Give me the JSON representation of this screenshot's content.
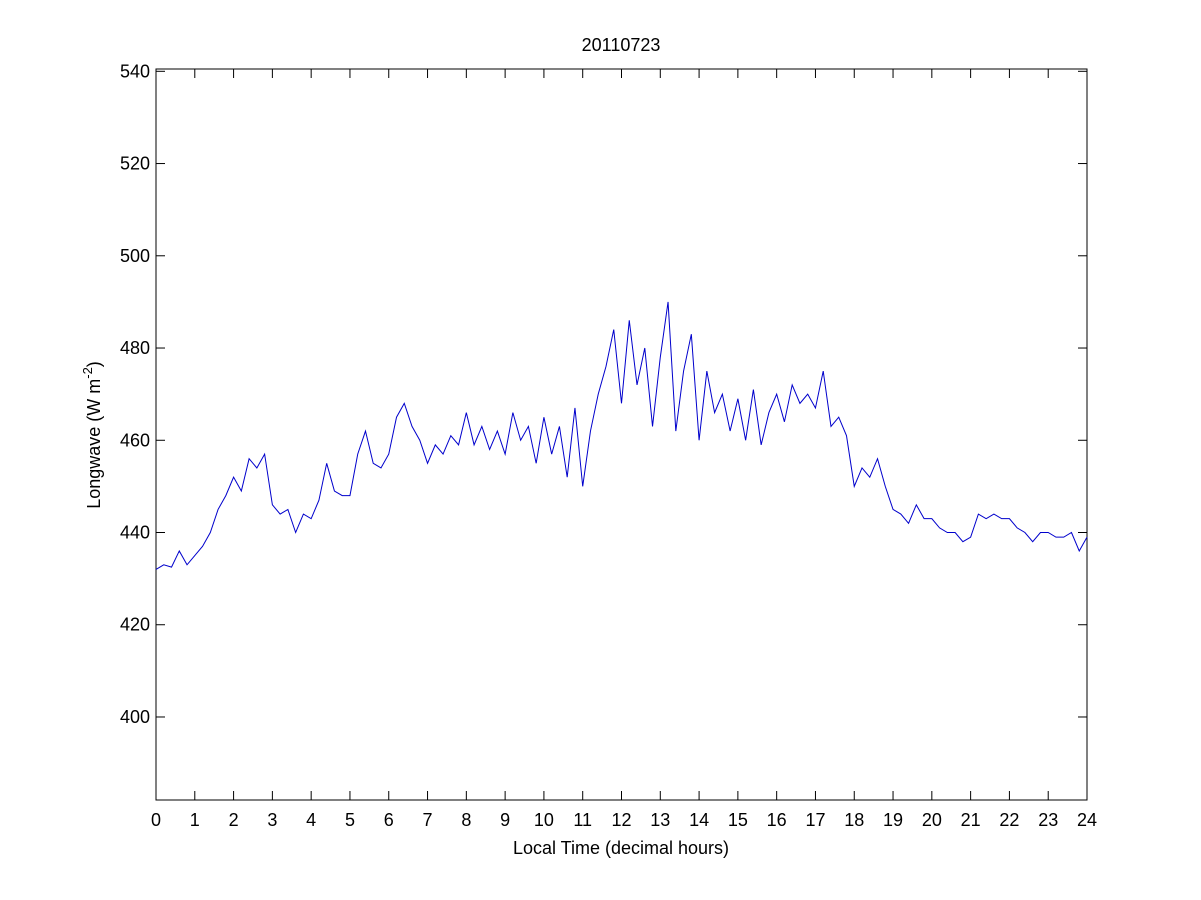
{
  "chart_data": {
    "type": "line",
    "title": "20110723",
    "xlabel": "Local Time (decimal hours)",
    "ylabel": {
      "text": "Longwave (W m",
      "sup": "-2",
      "end": ")"
    },
    "color": "#0000cc",
    "x": [
      0,
      0.2,
      0.4,
      0.6,
      0.8,
      1,
      1.2,
      1.4,
      1.6,
      1.8,
      2,
      2.2,
      2.4,
      2.6,
      2.8,
      3,
      3.2,
      3.4,
      3.6,
      3.8,
      4,
      4.2,
      4.4,
      4.6,
      4.8,
      5,
      5.2,
      5.4,
      5.6,
      5.8,
      6,
      6.2,
      6.4,
      6.6,
      6.8,
      7,
      7.2,
      7.4,
      7.6,
      7.8,
      8,
      8.2,
      8.4,
      8.6,
      8.8,
      9,
      9.2,
      9.4,
      9.6,
      9.8,
      10,
      10.2,
      10.4,
      10.6,
      10.8,
      11,
      11.2,
      11.4,
      11.6,
      11.8,
      12,
      12.2,
      12.4,
      12.6,
      12.8,
      13,
      13.2,
      13.4,
      13.6,
      13.8,
      14,
      14.2,
      14.4,
      14.6,
      14.8,
      15,
      15.2,
      15.4,
      15.6,
      15.8,
      16,
      16.2,
      16.4,
      16.6,
      16.8,
      17,
      17.2,
      17.4,
      17.6,
      17.8,
      18,
      18.2,
      18.4,
      18.6,
      18.8,
      19,
      19.2,
      19.4,
      19.6,
      19.8,
      20,
      20.2,
      20.4,
      20.6,
      20.8,
      21,
      21.2,
      21.4,
      21.6,
      21.8,
      22,
      22.2,
      22.4,
      22.6,
      22.8,
      23,
      23.2,
      23.4,
      23.6,
      23.8,
      24
    ],
    "values": [
      432,
      433,
      432.5,
      436,
      433,
      435,
      437,
      440,
      445,
      448,
      452,
      449,
      456,
      454,
      457,
      446,
      444,
      445,
      440,
      444,
      443,
      447,
      455,
      449,
      448,
      448,
      457,
      462,
      455,
      454,
      457,
      465,
      468,
      463,
      460,
      455,
      459,
      457,
      461,
      459,
      466,
      459,
      463,
      458,
      462,
      457,
      466,
      460,
      463,
      455,
      465,
      457,
      463,
      452,
      467,
      450,
      462,
      470,
      476,
      484,
      468,
      486,
      472,
      480,
      463,
      478,
      490,
      462,
      475,
      483,
      460,
      475,
      466,
      470,
      462,
      469,
      460,
      471,
      459,
      466,
      470,
      464,
      472,
      468,
      470,
      467,
      475,
      463,
      465,
      461,
      450,
      454,
      452,
      456,
      450,
      445,
      444,
      442,
      446,
      443,
      443,
      441,
      440,
      440,
      438,
      439,
      444,
      443,
      444,
      443,
      443,
      441,
      440,
      438,
      440,
      440,
      439,
      439,
      440,
      436,
      439
    ],
    "xlim": [
      0,
      24
    ],
    "ylim": [
      382,
      540.5
    ],
    "xticks": [
      0,
      1,
      2,
      3,
      4,
      5,
      6,
      7,
      8,
      9,
      10,
      11,
      12,
      13,
      14,
      15,
      16,
      17,
      18,
      19,
      20,
      21,
      22,
      23,
      24
    ],
    "yticks": [
      400,
      420,
      440,
      460,
      480,
      500,
      520,
      540
    ],
    "grid": false
  }
}
